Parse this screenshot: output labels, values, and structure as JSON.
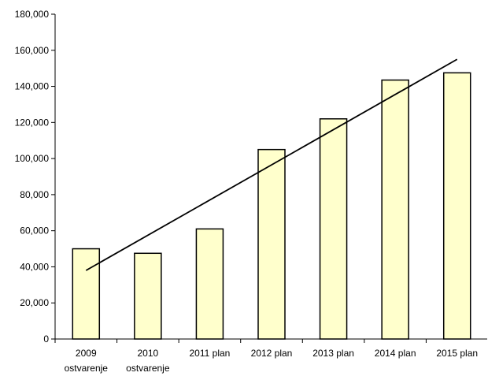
{
  "chart_data": {
    "type": "bar",
    "categories": [
      [
        "2009",
        "ostvarenje"
      ],
      [
        "2010",
        "ostvarenje"
      ],
      [
        "2011 plan"
      ],
      [
        "2012 plan"
      ],
      [
        "2013 plan"
      ],
      [
        "2014 plan"
      ],
      [
        "2015 plan"
      ]
    ],
    "values": [
      50000,
      47500,
      61000,
      105000,
      122000,
      143500,
      147500
    ],
    "trendline": {
      "type": "linear",
      "start": {
        "category_index": 0,
        "value": 38000
      },
      "end": {
        "category_index": 6,
        "value": 155000
      }
    },
    "ylim": [
      0,
      180000
    ],
    "yticks": [
      0,
      20000,
      40000,
      60000,
      80000,
      100000,
      120000,
      140000,
      160000,
      180000
    ],
    "ytick_labels": [
      "0",
      "20,000",
      "40,000",
      "60,000",
      "80,000",
      "100,000",
      "120,000",
      "140,000",
      "160,000",
      "180,000"
    ],
    "title": "",
    "xlabel": "",
    "ylabel": "",
    "grid": false,
    "legend": "none",
    "colors": {
      "bar_fill": "#ffffcc",
      "bar_stroke": "#000000",
      "axis": "#000000",
      "trendline": "#000000"
    }
  }
}
